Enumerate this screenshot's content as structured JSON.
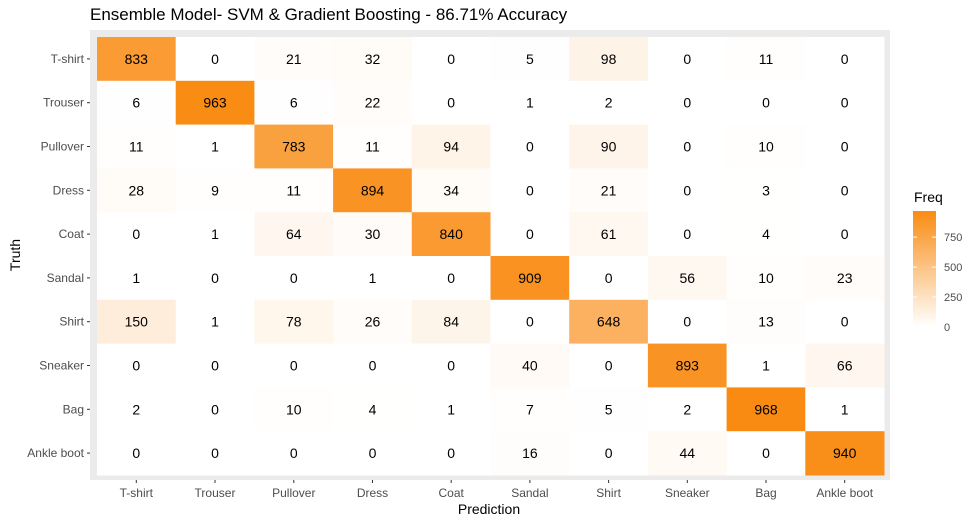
{
  "chart_data": {
    "type": "heatmap",
    "title": "Ensemble Model- SVM & Gradient Boosting - 86.71% Accuracy",
    "xlabel": "Prediction",
    "ylabel": "Truth",
    "x_categories": [
      "T-shirt",
      "Trouser",
      "Pullover",
      "Dress",
      "Coat",
      "Sandal",
      "Shirt",
      "Sneaker",
      "Bag",
      "Ankle boot"
    ],
    "y_categories": [
      "T-shirt",
      "Trouser",
      "Pullover",
      "Dress",
      "Coat",
      "Sandal",
      "Shirt",
      "Sneaker",
      "Bag",
      "Ankle boot"
    ],
    "values": [
      [
        833,
        0,
        21,
        32,
        0,
        5,
        98,
        0,
        11,
        0
      ],
      [
        6,
        963,
        6,
        22,
        0,
        1,
        2,
        0,
        0,
        0
      ],
      [
        11,
        1,
        783,
        11,
        94,
        0,
        90,
        0,
        10,
        0
      ],
      [
        28,
        9,
        11,
        894,
        34,
        0,
        21,
        0,
        3,
        0
      ],
      [
        0,
        1,
        64,
        30,
        840,
        0,
        61,
        0,
        4,
        0
      ],
      [
        1,
        0,
        0,
        1,
        0,
        909,
        0,
        56,
        10,
        23
      ],
      [
        150,
        1,
        78,
        26,
        84,
        0,
        648,
        0,
        13,
        0
      ],
      [
        0,
        0,
        0,
        0,
        0,
        40,
        0,
        893,
        1,
        66
      ],
      [
        2,
        0,
        10,
        4,
        1,
        7,
        5,
        2,
        968,
        1
      ],
      [
        0,
        0,
        0,
        0,
        0,
        16,
        0,
        44,
        0,
        940
      ]
    ],
    "legend": {
      "title": "Freq",
      "ticks": [
        0,
        250,
        500,
        750
      ],
      "range": [
        0,
        968
      ],
      "low_color": "#ffffff",
      "high_color": "#f98b12",
      "placement": "right"
    },
    "panel_background": "#ebebeb"
  }
}
